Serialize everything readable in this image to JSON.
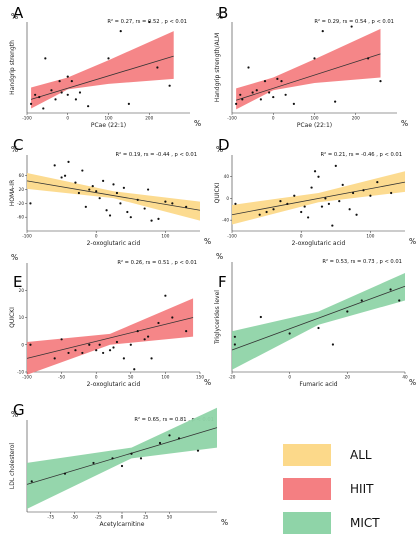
{
  "colors": {
    "all": "#fcd98a",
    "hiit": "#f47f82",
    "mict": "#8fd4a8",
    "line": "#333333",
    "point": "#111111"
  },
  "legend": [
    {
      "label": "ALL",
      "color": "#fcd98a"
    },
    {
      "label": "HIIT",
      "color": "#f47f82"
    },
    {
      "label": "MICT",
      "color": "#8fd4a8"
    }
  ],
  "chart_data": [
    {
      "type": "scatter",
      "panel": "A",
      "group": "HIIT",
      "stats": "R² = 0.27, rs = 0.52 , p < 0.01",
      "xlabel": "PCae (22:1)",
      "ylabel": "Handgrip strength",
      "x_unit": "%",
      "y_unit": "%",
      "xlim": [
        -100,
        300
      ],
      "ylim": [
        -50,
        150
      ],
      "xticks": [
        -100,
        0,
        100,
        200
      ],
      "yticks": [],
      "points": [
        [
          -90,
          -30
        ],
        [
          -80,
          -10
        ],
        [
          -70,
          -15
        ],
        [
          -60,
          -40
        ],
        [
          -55,
          70
        ],
        [
          -40,
          0
        ],
        [
          -30,
          -20
        ],
        [
          -20,
          20
        ],
        [
          -15,
          -5
        ],
        [
          0,
          -10
        ],
        [
          0,
          30
        ],
        [
          10,
          20
        ],
        [
          20,
          -20
        ],
        [
          30,
          -5
        ],
        [
          50,
          -35
        ],
        [
          100,
          70
        ],
        [
          130,
          130
        ],
        [
          150,
          -30
        ],
        [
          200,
          150
        ],
        [
          220,
          50
        ],
        [
          250,
          10
        ]
      ],
      "fit": [
        [
          -90,
          -20
        ],
        [
          260,
          75
        ]
      ],
      "band": {
        "lower": [
          [
            -90,
            -40
          ],
          [
            0,
            2
          ],
          [
            100,
            14
          ],
          [
            260,
            25
          ]
        ],
        "upper": [
          [
            -90,
            6
          ],
          [
            0,
            28
          ],
          [
            100,
            66
          ],
          [
            260,
            130
          ]
        ]
      }
    },
    {
      "type": "scatter",
      "panel": "B",
      "group": "HIIT",
      "stats": "R² = 0.29, rs = 0.54 , p < 0.01",
      "xlabel": "PCae (22:1)",
      "ylabel": "Handgrip strength/ALM",
      "x_unit": "%",
      "y_unit": "%",
      "xlim": [
        -100,
        300
      ],
      "ylim": [
        -50,
        150
      ],
      "xticks": [
        -100,
        0,
        100,
        200
      ],
      "yticks": [],
      "points": [
        [
          -90,
          -30
        ],
        [
          -80,
          -10
        ],
        [
          -75,
          -20
        ],
        [
          -60,
          50
        ],
        [
          -50,
          -5
        ],
        [
          -40,
          0
        ],
        [
          -30,
          -20
        ],
        [
          -20,
          20
        ],
        [
          -10,
          -5
        ],
        [
          0,
          -15
        ],
        [
          10,
          25
        ],
        [
          20,
          20
        ],
        [
          30,
          -10
        ],
        [
          50,
          -30
        ],
        [
          100,
          70
        ],
        [
          120,
          130
        ],
        [
          150,
          -25
        ],
        [
          190,
          140
        ],
        [
          230,
          70
        ],
        [
          260,
          20
        ]
      ],
      "fit": [
        [
          -90,
          -22
        ],
        [
          260,
          80
        ]
      ],
      "band": {
        "lower": [
          [
            -90,
            -42
          ],
          [
            0,
            0
          ],
          [
            100,
            16
          ],
          [
            260,
            28
          ]
        ],
        "upper": [
          [
            -90,
            4
          ],
          [
            0,
            28
          ],
          [
            100,
            68
          ],
          [
            260,
            135
          ]
        ]
      }
    },
    {
      "type": "scatter",
      "panel": "C",
      "group": "ALL",
      "stats": "R² = 0.19, rs = -0.44 , p < 0.01",
      "xlabel": "2-oxoglutaric acid",
      "ylabel": "HOMA-IR",
      "x_unit": "%",
      "y_unit": "%",
      "xlim": [
        -100,
        150
      ],
      "ylim": [
        -100,
        120
      ],
      "xticks": [
        -100,
        0,
        100
      ],
      "yticks": [
        -60,
        -20,
        20,
        60
      ],
      "points": [
        [
          -95,
          -20
        ],
        [
          -60,
          90
        ],
        [
          -50,
          55
        ],
        [
          -45,
          60
        ],
        [
          -40,
          100
        ],
        [
          -30,
          40
        ],
        [
          -25,
          10
        ],
        [
          -20,
          75
        ],
        [
          -15,
          -30
        ],
        [
          -10,
          20
        ],
        [
          -5,
          30
        ],
        [
          0,
          15
        ],
        [
          5,
          -5
        ],
        [
          10,
          45
        ],
        [
          15,
          -40
        ],
        [
          20,
          -55
        ],
        [
          25,
          35
        ],
        [
          30,
          10
        ],
        [
          35,
          -20
        ],
        [
          40,
          25
        ],
        [
          45,
          -45
        ],
        [
          50,
          -60
        ],
        [
          60,
          -10
        ],
        [
          70,
          -35
        ],
        [
          75,
          20
        ],
        [
          80,
          -70
        ],
        [
          90,
          -65
        ],
        [
          100,
          -15
        ],
        [
          110,
          -20
        ],
        [
          130,
          -30
        ]
      ],
      "fit": [
        [
          -100,
          45
        ],
        [
          150,
          -40
        ]
      ],
      "band": {
        "lower": [
          [
            -100,
            22
          ],
          [
            25,
            -5
          ],
          [
            150,
            -70
          ]
        ],
        "upper": [
          [
            -100,
            68
          ],
          [
            25,
            15
          ],
          [
            150,
            -15
          ]
        ]
      }
    },
    {
      "type": "scatter",
      "panel": "D",
      "group": "ALL",
      "stats": "R² = 0.21, rs = -0.46 , p < 0.01",
      "xlabel": "2-oxoglutaric acid",
      "ylabel": "QUICKI",
      "x_unit": "%",
      "y_unit": "%",
      "xlim": [
        -100,
        150
      ],
      "ylim": [
        -60,
        80
      ],
      "xticks": [
        -100,
        0,
        100
      ],
      "yticks": [
        -40,
        0,
        40
      ],
      "points": [
        [
          -95,
          -10
        ],
        [
          -60,
          -30
        ],
        [
          -50,
          -25
        ],
        [
          -40,
          -20
        ],
        [
          -30,
          -5
        ],
        [
          -20,
          -10
        ],
        [
          -10,
          5
        ],
        [
          0,
          -25
        ],
        [
          5,
          -15
        ],
        [
          10,
          -35
        ],
        [
          15,
          20
        ],
        [
          20,
          50
        ],
        [
          25,
          40
        ],
        [
          30,
          -15
        ],
        [
          35,
          0
        ],
        [
          40,
          -10
        ],
        [
          45,
          -50
        ],
        [
          50,
          60
        ],
        [
          55,
          -5
        ],
        [
          60,
          25
        ],
        [
          70,
          -20
        ],
        [
          75,
          10
        ],
        [
          80,
          -30
        ],
        [
          90,
          15
        ],
        [
          100,
          5
        ],
        [
          110,
          30
        ],
        [
          130,
          10
        ]
      ],
      "fit": [
        [
          -100,
          -30
        ],
        [
          150,
          30
        ]
      ],
      "band": {
        "lower": [
          [
            -100,
            -48
          ],
          [
            25,
            -7
          ],
          [
            150,
            12
          ]
        ],
        "upper": [
          [
            -100,
            -12
          ],
          [
            25,
            10
          ],
          [
            150,
            50
          ]
        ]
      }
    },
    {
      "type": "scatter",
      "panel": "E",
      "group": "HIIT",
      "stats": "R² = 0.26, rs = 0.51 , p < 0.01",
      "xlabel": "2-oxoglutaric acid",
      "ylabel": "QUICKI",
      "x_unit": "%",
      "y_unit": "%",
      "xlim": [
        -100,
        150
      ],
      "ylim": [
        -10,
        30
      ],
      "xticks": [
        -100,
        -50,
        0,
        50,
        100,
        150
      ],
      "yticks": [
        -10,
        0,
        10,
        20
      ],
      "points": [
        [
          -95,
          0
        ],
        [
          -60,
          -5
        ],
        [
          -50,
          2
        ],
        [
          -40,
          -3
        ],
        [
          -30,
          -2
        ],
        [
          -20,
          -3
        ],
        [
          -10,
          0
        ],
        [
          0,
          -2
        ],
        [
          5,
          0
        ],
        [
          10,
          -3
        ],
        [
          20,
          -2
        ],
        [
          25,
          -1
        ],
        [
          30,
          1
        ],
        [
          40,
          -5
        ],
        [
          50,
          0
        ],
        [
          55,
          -9
        ],
        [
          60,
          5
        ],
        [
          70,
          2
        ],
        [
          75,
          3
        ],
        [
          80,
          -5
        ],
        [
          90,
          8
        ],
        [
          100,
          18
        ],
        [
          110,
          10
        ],
        [
          130,
          5
        ]
      ],
      "fit": [
        [
          -100,
          -5
        ],
        [
          140,
          10
        ]
      ],
      "band": {
        "lower": [
          [
            -100,
            -11
          ],
          [
            20,
            0
          ],
          [
            140,
            3
          ]
        ],
        "upper": [
          [
            -100,
            1
          ],
          [
            20,
            4
          ],
          [
            140,
            17
          ]
        ]
      }
    },
    {
      "type": "scatter",
      "panel": "F",
      "group": "MICT",
      "stats": "R² = 0.53, rs = 0.73 , p < 0.01",
      "xlabel": "Fumaric acid",
      "ylabel": "Triglycerides level",
      "x_unit": "%",
      "y_unit": "%",
      "xlim": [
        -20,
        40
      ],
      "ylim": [
        -40,
        60
      ],
      "xticks": [
        -20,
        0,
        20,
        40
      ],
      "yticks": [],
      "points": [
        [
          -19,
          -8
        ],
        [
          -19,
          -15
        ],
        [
          -10,
          10
        ],
        [
          0,
          -5
        ],
        [
          10,
          0
        ],
        [
          15,
          -15
        ],
        [
          20,
          15
        ],
        [
          25,
          25
        ],
        [
          35,
          35
        ],
        [
          38,
          25
        ]
      ],
      "fit": [
        [
          -20,
          -20
        ],
        [
          40,
          38
        ]
      ],
      "band": {
        "lower": [
          [
            -20,
            -38
          ],
          [
            10,
            3
          ],
          [
            40,
            25
          ]
        ],
        "upper": [
          [
            -20,
            -3
          ],
          [
            10,
            15
          ],
          [
            40,
            50
          ]
        ]
      }
    },
    {
      "type": "scatter",
      "panel": "G",
      "group": "MICT",
      "stats": "R² = 0.65, rs = 0.81 , p < 0.01",
      "xlabel": "Acetylcarnitine",
      "ylabel": "LDL cholesterol",
      "x_unit": "%",
      "y_unit": "%",
      "xlim": [
        -100,
        100
      ],
      "ylim": [
        -20,
        40
      ],
      "xticks": [
        -75,
        -50,
        -25,
        0,
        25,
        50
      ],
      "yticks": [],
      "points": [
        [
          -95,
          0
        ],
        [
          -60,
          5
        ],
        [
          -30,
          12
        ],
        [
          -10,
          15
        ],
        [
          0,
          10
        ],
        [
          10,
          18
        ],
        [
          20,
          15
        ],
        [
          40,
          25
        ],
        [
          50,
          30
        ],
        [
          60,
          28
        ],
        [
          80,
          20
        ]
      ],
      "fit": [
        [
          -100,
          -2
        ],
        [
          100,
          35
        ]
      ],
      "band": {
        "lower": [
          [
            -100,
            -18
          ],
          [
            10,
            15
          ],
          [
            100,
            22
          ]
        ],
        "upper": [
          [
            -100,
            12
          ],
          [
            10,
            22
          ],
          [
            100,
            48
          ]
        ]
      }
    }
  ]
}
